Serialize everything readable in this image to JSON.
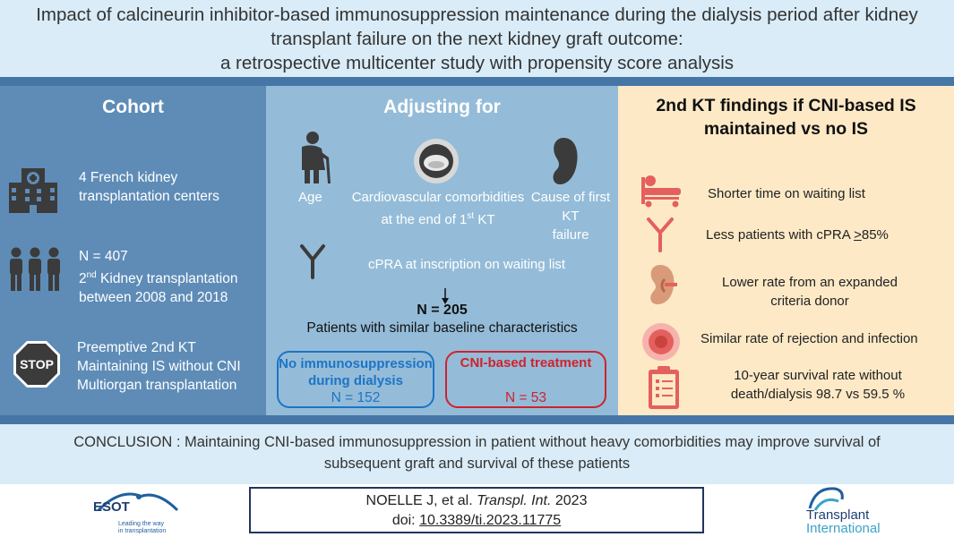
{
  "header": {
    "line1": "Impact of calcineurin inhibitor-based immunosuppression maintenance during the dialysis period after kidney",
    "line2": "transplant failure on the next kidney graft outcome:",
    "line3": "a retrospective multicenter study with propensity score analysis"
  },
  "cohort": {
    "title": "Cohort",
    "centers_l1": "4 French kidney",
    "centers_l2": "transplantation centers",
    "n_line": "N = 407",
    "kt_pre": "2",
    "kt_sup": "nd",
    "kt_post": " Kidney transplantation",
    "years": "between  2008 and 2018",
    "excl1": "Preemptive 2nd KT",
    "excl2": "Maintaining IS without CNI",
    "excl3": "Multiorgan transplantation",
    "stop_label": "STOP"
  },
  "adjusting": {
    "title": "Adjusting for",
    "age": "Age",
    "cardio_l1": "Cardiovascular comorbidities",
    "cardio_l2_pre": "at the end of 1",
    "cardio_l2_sup": "st",
    "cardio_l2_post": " KT",
    "cause_l1": "Cause of first KT",
    "cause_l2": "failure",
    "cpra": "cPRA at inscription on waiting list",
    "n_total": "N = 205",
    "similar": "Patients with similar baseline characteristics",
    "group1_l1": "No immunosuppression",
    "group1_l2": "during dialysis",
    "group1_n": "N = 152",
    "group2_title": "CNI-based treatment",
    "group2_n": "N = 53"
  },
  "findings": {
    "title_l1": "2nd KT findings if CNI-based IS",
    "title_l2": "maintained vs no IS",
    "f1": "Shorter time on waiting list",
    "f2_pre": "Less patients with cPRA ",
    "f2_ge": ">",
    "f2_post": "85%",
    "f3_l1": "Lower rate from an expanded",
    "f3_l2": "criteria donor",
    "f4": "Similar rate of rejection and infection",
    "f5_l1": "10-year survival rate without",
    "f5_l2": "death/dialysis 98.7 vs 59.5 %"
  },
  "conclusion": {
    "line1": "CONCLUSION : Maintaining  CNI-based immunosuppression  in patient without heavy comorbidities may improve survival of",
    "line2": "subsequent graft and survival of these patients"
  },
  "citation": {
    "authors": "NOELLE J, et al. ",
    "journal": "Transpl. Int.",
    "year": " 2023",
    "doi_label": "doi: ",
    "doi": "10.3389/ti.2023.11775"
  },
  "logos": {
    "esot_name": "ESOT",
    "esot_tagline1": "Leading the way",
    "esot_tagline2": "in transplantation",
    "ti_line1": "Transplant",
    "ti_line2": "International"
  },
  "colors": {
    "cohort_bg": "#5e8cb7",
    "adjust_bg": "#94bcd8",
    "findings_bg": "#fde9c6",
    "header_bg": "#d9ecf7",
    "bar": "#4676a6",
    "group1_border": "#1d74c6",
    "group2_border": "#d0222c",
    "icon_dark": "#3b3b3b",
    "icon_red": "#e4605e"
  }
}
